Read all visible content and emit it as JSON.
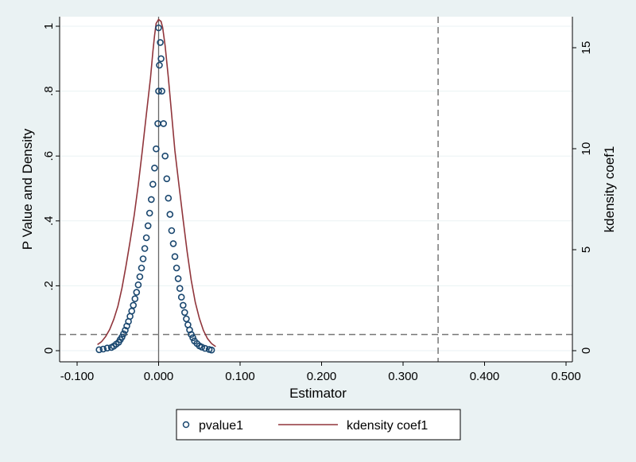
{
  "chart_data": {
    "type": "scatter",
    "title": "",
    "xlabel": "Estimator",
    "ylabel": "P Value and Density",
    "y2label": "kdensity coef1",
    "xlim": [
      -0.1,
      0.5
    ],
    "ylim": [
      0,
      1
    ],
    "y2lim": [
      0,
      16.5
    ],
    "xticks": [
      -0.1,
      0.0,
      0.1,
      0.2,
      0.3,
      0.4,
      0.5
    ],
    "xtick_labels": [
      "-0.100",
      "0.000",
      "0.100",
      "0.200",
      "0.300",
      "0.400",
      "0.500"
    ],
    "yticks": [
      0,
      0.2,
      0.4,
      0.6,
      0.8,
      1
    ],
    "ytick_labels": [
      "0",
      ".2",
      ".4",
      ".6",
      ".8",
      "1"
    ],
    "y2ticks": [
      0,
      5,
      10,
      15
    ],
    "y2tick_labels": [
      "0",
      "5",
      "10",
      "15"
    ],
    "grid": true,
    "reference_lines": {
      "vertical_solid_x": 0.0,
      "vertical_dashed_x": 0.343,
      "horizontal_dashed_y": 0.05
    },
    "legend": {
      "position": "bottom",
      "entries": [
        "pvalue1",
        "kdensity coef1"
      ]
    },
    "series": [
      {
        "name": "pvalue1",
        "kind": "scatter",
        "marker": "hollow-circle",
        "color": "#1a476f",
        "points": [
          [
            -0.073,
            0.003
          ],
          [
            -0.068,
            0.005
          ],
          [
            -0.063,
            0.008
          ],
          [
            -0.058,
            0.01
          ],
          [
            -0.055,
            0.014
          ],
          [
            -0.052,
            0.02
          ],
          [
            -0.049,
            0.026
          ],
          [
            -0.047,
            0.034
          ],
          [
            -0.045,
            0.042
          ],
          [
            -0.043,
            0.052
          ],
          [
            -0.041,
            0.063
          ],
          [
            -0.039,
            0.076
          ],
          [
            -0.037,
            0.09
          ],
          [
            -0.035,
            0.106
          ],
          [
            -0.033,
            0.122
          ],
          [
            -0.031,
            0.14
          ],
          [
            -0.029,
            0.16
          ],
          [
            -0.027,
            0.18
          ],
          [
            -0.025,
            0.203
          ],
          [
            -0.023,
            0.228
          ],
          [
            -0.021,
            0.255
          ],
          [
            -0.019,
            0.283
          ],
          [
            -0.017,
            0.315
          ],
          [
            -0.015,
            0.348
          ],
          [
            -0.013,
            0.385
          ],
          [
            -0.011,
            0.424
          ],
          [
            -0.009,
            0.466
          ],
          [
            -0.007,
            0.513
          ],
          [
            -0.005,
            0.563
          ],
          [
            -0.003,
            0.622
          ],
          [
            -0.001,
            0.7
          ],
          [
            0.0,
            0.8
          ],
          [
            0.001,
            0.88
          ],
          [
            0.002,
            0.95
          ],
          [
            0.0,
            0.995
          ],
          [
            0.003,
            0.9
          ],
          [
            0.004,
            0.8
          ],
          [
            0.006,
            0.7
          ],
          [
            0.008,
            0.6
          ],
          [
            0.01,
            0.53
          ],
          [
            0.012,
            0.47
          ],
          [
            0.014,
            0.42
          ],
          [
            0.016,
            0.37
          ],
          [
            0.018,
            0.33
          ],
          [
            0.02,
            0.29
          ],
          [
            0.022,
            0.255
          ],
          [
            0.024,
            0.222
          ],
          [
            0.026,
            0.192
          ],
          [
            0.028,
            0.165
          ],
          [
            0.03,
            0.14
          ],
          [
            0.032,
            0.118
          ],
          [
            0.034,
            0.098
          ],
          [
            0.036,
            0.08
          ],
          [
            0.038,
            0.064
          ],
          [
            0.04,
            0.05
          ],
          [
            0.042,
            0.04
          ],
          [
            0.044,
            0.03
          ],
          [
            0.047,
            0.022
          ],
          [
            0.05,
            0.015
          ],
          [
            0.053,
            0.011
          ],
          [
            0.057,
            0.007
          ],
          [
            0.062,
            0.004
          ],
          [
            0.065,
            0.002
          ]
        ]
      },
      {
        "name": "kdensity coef1",
        "kind": "line",
        "axis": "right",
        "color": "#90353b",
        "points": [
          [
            -0.075,
            0.3
          ],
          [
            -0.07,
            0.45
          ],
          [
            -0.065,
            0.7
          ],
          [
            -0.06,
            1.05
          ],
          [
            -0.055,
            1.55
          ],
          [
            -0.05,
            2.2
          ],
          [
            -0.045,
            3.1
          ],
          [
            -0.04,
            4.2
          ],
          [
            -0.035,
            5.4
          ],
          [
            -0.03,
            6.7
          ],
          [
            -0.025,
            8.2
          ],
          [
            -0.02,
            9.9
          ],
          [
            -0.015,
            11.7
          ],
          [
            -0.01,
            13.5
          ],
          [
            -0.007,
            14.8
          ],
          [
            -0.005,
            15.6
          ],
          [
            -0.003,
            16.2
          ],
          [
            0.0,
            16.4
          ],
          [
            0.003,
            16.3
          ],
          [
            0.005,
            16.0
          ],
          [
            0.008,
            15.1
          ],
          [
            0.012,
            13.5
          ],
          [
            0.016,
            11.7
          ],
          [
            0.02,
            9.9
          ],
          [
            0.025,
            8.2
          ],
          [
            0.03,
            6.5
          ],
          [
            0.035,
            4.9
          ],
          [
            0.04,
            3.5
          ],
          [
            0.045,
            2.4
          ],
          [
            0.05,
            1.6
          ],
          [
            0.055,
            1.0
          ],
          [
            0.06,
            0.6
          ],
          [
            0.065,
            0.35
          ],
          [
            0.07,
            0.2
          ]
        ]
      }
    ]
  }
}
